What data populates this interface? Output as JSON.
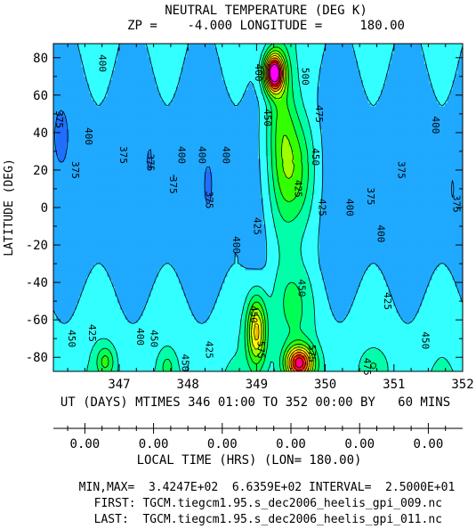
{
  "chart_data": {
    "type": "heatmap",
    "title": "NEUTRAL TEMPERATURE (DEG K)",
    "subtitle": "ZP =    -4.000 LONGITUDE =     180.00",
    "ylabel": "LATITUDE (DEG)",
    "xlabel": "UT (DAYS) MTIMES 346 01:00 TO 352 00:00 BY   60 MINS",
    "x2label": "LOCAL TIME (HRS) (LON= 180.00)",
    "xlim": [
      346.0417,
      352.0
    ],
    "ylim": [
      -87.5,
      87.5
    ],
    "x_ticks": [
      347,
      348,
      349,
      350,
      351,
      352
    ],
    "x_tick_labels": [
      "347",
      "348",
      "349",
      "350",
      "351",
      "352"
    ],
    "y_ticks": [
      -80,
      -60,
      -40,
      -20,
      0,
      20,
      40,
      60,
      80
    ],
    "y_tick_labels": [
      "-80",
      "-60",
      "-40",
      "-20",
      "0",
      "20",
      "40",
      "60",
      "80"
    ],
    "x2_tick_labels": [
      "0.00",
      "0.00",
      "0.00",
      "0.00",
      "0.00",
      "0.00"
    ],
    "x2_ticks": [
      346.5,
      347.5,
      348.5,
      349.5,
      350.5,
      351.5
    ],
    "min": "3.4247E+02",
    "max": "6.6359E+02",
    "interval": "2.5000E+01",
    "contour_levels": [
      350,
      375,
      400,
      425,
      450,
      475,
      500,
      525,
      550,
      575,
      600,
      625,
      650
    ],
    "color_levels": [
      "#0000cd",
      "#1f6fff",
      "#1fa9ff",
      "#33ffff",
      "#00ffa8",
      "#00ff55",
      "#33ff00",
      "#9dff00",
      "#ffff00",
      "#ffb400",
      "#ff6400",
      "#ff0000",
      "#ff0080",
      "#ff00ff"
    ],
    "contour_labels": [
      {
        "x": 346.12,
        "y": 47,
        "text": "375"
      },
      {
        "x": 346.35,
        "y": 20,
        "text": "375"
      },
      {
        "x": 346.55,
        "y": 38,
        "text": "400"
      },
      {
        "x": 346.75,
        "y": 77,
        "text": "400"
      },
      {
        "x": 347.05,
        "y": 28,
        "text": "375"
      },
      {
        "x": 347.45,
        "y": 24,
        "text": "375"
      },
      {
        "x": 347.78,
        "y": 12,
        "text": "375"
      },
      {
        "x": 347.9,
        "y": 28,
        "text": "400"
      },
      {
        "x": 348.2,
        "y": 28,
        "text": "400"
      },
      {
        "x": 348.3,
        "y": 4,
        "text": "375"
      },
      {
        "x": 348.55,
        "y": 28,
        "text": "400"
      },
      {
        "x": 349.02,
        "y": 72,
        "text": "400"
      },
      {
        "x": 349.15,
        "y": 48,
        "text": "450"
      },
      {
        "x": 349.0,
        "y": -10,
        "text": "425"
      },
      {
        "x": 348.7,
        "y": -20,
        "text": "400"
      },
      {
        "x": 349.7,
        "y": 70,
        "text": "500"
      },
      {
        "x": 349.9,
        "y": 50,
        "text": "475"
      },
      {
        "x": 349.85,
        "y": 27,
        "text": "450"
      },
      {
        "x": 349.6,
        "y": 10,
        "text": "425"
      },
      {
        "x": 349.95,
        "y": 0,
        "text": "425"
      },
      {
        "x": 350.35,
        "y": 0,
        "text": "400"
      },
      {
        "x": 350.65,
        "y": 6,
        "text": "375"
      },
      {
        "x": 350.8,
        "y": -14,
        "text": "400"
      },
      {
        "x": 351.1,
        "y": 20,
        "text": "375"
      },
      {
        "x": 351.6,
        "y": 44,
        "text": "400"
      },
      {
        "x": 351.9,
        "y": 2,
        "text": "375"
      },
      {
        "x": 349.65,
        "y": -43,
        "text": "450"
      },
      {
        "x": 350.9,
        "y": -50,
        "text": "425"
      },
      {
        "x": 348.95,
        "y": -57,
        "text": "450"
      },
      {
        "x": 349.05,
        "y": -76,
        "text": "575"
      },
      {
        "x": 349.8,
        "y": -78,
        "text": "575"
      },
      {
        "x": 346.3,
        "y": -70,
        "text": "450"
      },
      {
        "x": 346.6,
        "y": -67,
        "text": "425"
      },
      {
        "x": 347.3,
        "y": -69,
        "text": "400"
      },
      {
        "x": 347.5,
        "y": -70,
        "text": "450"
      },
      {
        "x": 347.95,
        "y": -83,
        "text": "450"
      },
      {
        "x": 348.3,
        "y": -76,
        "text": "425"
      },
      {
        "x": 350.6,
        "y": -85,
        "text": "475"
      },
      {
        "x": 351.45,
        "y": -71,
        "text": "450"
      }
    ]
  },
  "footer": {
    "minmax_line": "MIN,MAX=  3.4247E+02  6.6359E+02 INTERVAL=  2.5000E+01",
    "first_line": "FIRST: TGCM.tiegcm1.95.s_dec2006_heelis_gpi_009.nc",
    "last_line": "LAST:  TGCM.tiegcm1.95.s_dec2006_heelis_gpi_011.nc"
  }
}
